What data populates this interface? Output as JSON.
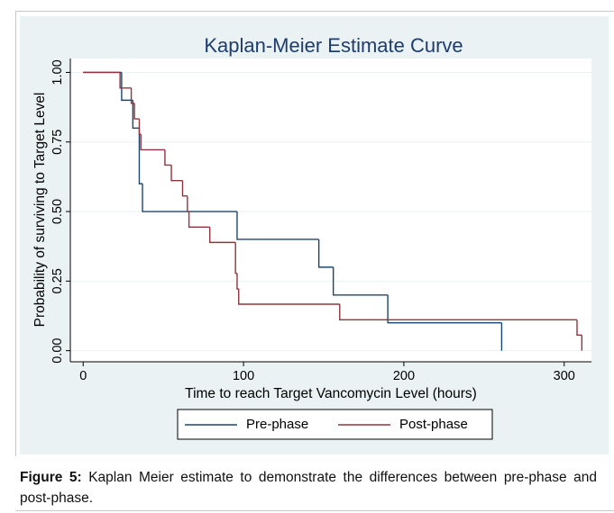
{
  "chart_data": {
    "type": "step",
    "title": "Kaplan-Meier Estimate Curve",
    "x_label": "Time to reach Target Vancomycin Level (hours)",
    "y_label": "Probability of surviving to Target Level",
    "xlim": [
      -8,
      317
    ],
    "ylim": [
      -0.04,
      1.05
    ],
    "xticks": [
      0,
      100,
      200,
      300
    ],
    "yticks": [
      {
        "value": 0,
        "label": "0.00"
      },
      {
        "value": 0.25,
        "label": "0.25"
      },
      {
        "value": 0.5,
        "label": "0.50"
      },
      {
        "value": 0.75,
        "label": "0.75"
      },
      {
        "value": 1,
        "label": "1.00"
      }
    ],
    "grid": true,
    "legend": "bottom",
    "series": [
      {
        "name": "Pre-phase",
        "color": "#1a476f",
        "x": [
          0,
          24,
          31,
          35,
          37,
          96,
          147,
          156,
          190,
          261
        ],
        "values": [
          1,
          0.9,
          0.8,
          0.6,
          0.5,
          0.4,
          0.3,
          0.2,
          0.1,
          0
        ]
      },
      {
        "name": "Post-phase",
        "color": "#90353b",
        "x": [
          0,
          23,
          30,
          32,
          35,
          36,
          51,
          55,
          62,
          65,
          66,
          79,
          95,
          96,
          97,
          160,
          308,
          311
        ],
        "values": [
          1,
          0.944,
          0.889,
          0.833,
          0.778,
          0.722,
          0.667,
          0.611,
          0.556,
          0.5,
          0.444,
          0.389,
          0.278,
          0.222,
          0.167,
          0.111,
          0.056,
          0
        ]
      }
    ]
  },
  "caption": {
    "label": "Figure 5:",
    "text": "Kaplan Meier estimate to demonstrate the differences between pre-phase and post-phase."
  }
}
